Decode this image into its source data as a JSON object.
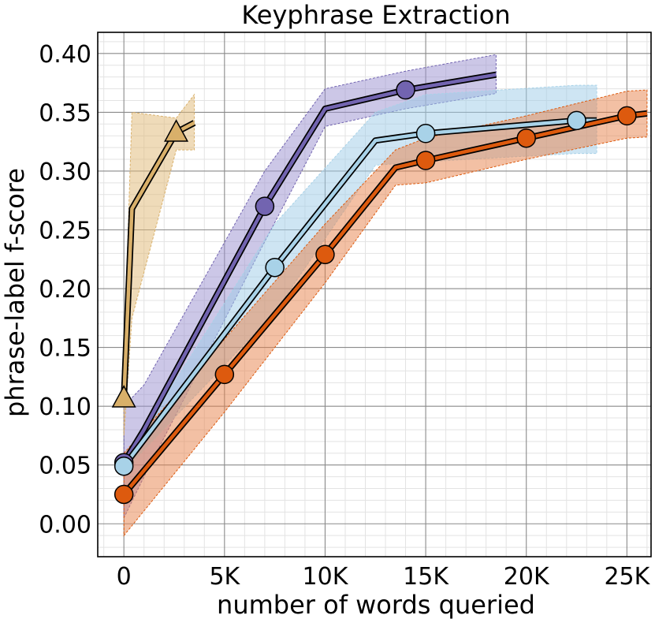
{
  "chart_data": {
    "type": "line",
    "title": "Keyphrase Extraction",
    "xlabel": "number of words queried",
    "ylabel": "phrase-label f-score",
    "xlim": [
      -1300,
      26200
    ],
    "ylim": [
      -0.028,
      0.418
    ],
    "grid": true,
    "x_ticks": [
      0,
      5000,
      10000,
      15000,
      20000,
      25000
    ],
    "x_tick_labels": [
      "0",
      "5K",
      "10K",
      "15K",
      "20K",
      "25K"
    ],
    "y_ticks": [
      0.0,
      0.05,
      0.1,
      0.15,
      0.2,
      0.25,
      0.3,
      0.35,
      0.4
    ],
    "y_tick_labels": [
      "0.00",
      "0.05",
      "0.10",
      "0.15",
      "0.20",
      "0.25",
      "0.30",
      "0.35",
      "0.40"
    ],
    "series": [
      {
        "name": "purple",
        "color": "#7264b0",
        "band_color": "#9a8fcf",
        "marker": "circle",
        "x": [
          0,
          1000,
          7000,
          10000,
          14000,
          18500
        ],
        "y": [
          0.052,
          0.08,
          0.27,
          0.353,
          0.369,
          0.382
        ],
        "lower": [
          0.005,
          0.04,
          0.24,
          0.338,
          0.353,
          0.366
        ],
        "upper": [
          0.1,
          0.118,
          0.3,
          0.37,
          0.385,
          0.399
        ],
        "marker_indices": [
          0,
          2,
          4
        ]
      },
      {
        "name": "light-blue",
        "color": "#a8d2e8",
        "band_color": "#9dcce8",
        "marker": "circle",
        "x": [
          0,
          7500,
          12500,
          15000,
          22500,
          23500
        ],
        "y": [
          0.049,
          0.218,
          0.326,
          0.332,
          0.343,
          0.343
        ],
        "lower": [
          0.045,
          0.18,
          0.305,
          0.308,
          0.315,
          0.315
        ],
        "upper": [
          0.053,
          0.255,
          0.35,
          0.365,
          0.373,
          0.373
        ],
        "marker_indices": [
          0,
          1,
          3,
          4
        ]
      },
      {
        "name": "orange",
        "color": "#dd5a0e",
        "band_color": "#e8824a",
        "marker": "circle",
        "x": [
          0,
          5000,
          10000,
          13500,
          15000,
          20000,
          25000,
          26000
        ],
        "y": [
          0.025,
          0.127,
          0.229,
          0.303,
          0.309,
          0.328,
          0.347,
          0.349
        ],
        "lower": [
          -0.01,
          0.095,
          0.205,
          0.288,
          0.29,
          0.31,
          0.328,
          0.329
        ],
        "upper": [
          0.06,
          0.157,
          0.255,
          0.318,
          0.328,
          0.347,
          0.368,
          0.369
        ],
        "marker_indices": [
          0,
          1,
          2,
          4,
          5,
          6
        ]
      },
      {
        "name": "gold",
        "color": "#d9b06a",
        "band_color": "#dfb873",
        "marker": "triangle",
        "x": [
          0,
          400,
          2600,
          3500
        ],
        "y": [
          0.107,
          0.268,
          0.333,
          0.341
        ],
        "lower": [
          0.075,
          0.175,
          0.318,
          0.318
        ],
        "upper": [
          0.14,
          0.35,
          0.345,
          0.365
        ],
        "marker_indices": [
          0,
          2
        ]
      }
    ]
  }
}
